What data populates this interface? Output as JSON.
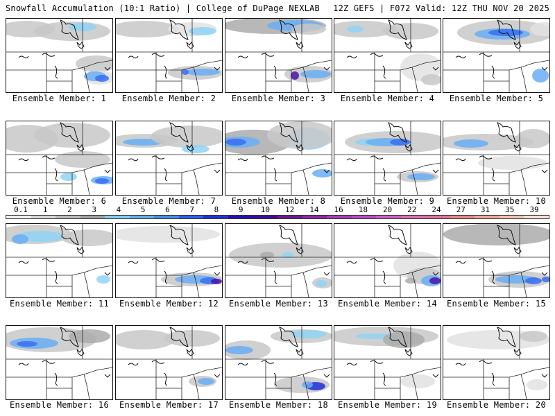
{
  "header": {
    "title_left": "Snowfall Accumulation (10:1 Ratio) | College of DuPage NEXLAB",
    "title_right": "12Z GEFS | F072 Valid: 12Z THU NOV 20 2025"
  },
  "colors": {
    "panel_border": "#111111",
    "state_lines": "#222222",
    "background": "#ffffff"
  },
  "scale": {
    "labels": [
      "0.1",
      "1",
      "2",
      "3",
      "4",
      "5",
      "6",
      "7",
      "8",
      "9",
      "10",
      "12",
      "14",
      "16",
      "18",
      "20",
      "22",
      "24",
      "27",
      "31",
      "35",
      "39"
    ],
    "colors": [
      "#f2f2f2",
      "#d8d8d8",
      "#bdbdbd",
      "#a2a2a2",
      "#87cfee",
      "#65b1f2",
      "#4a8ef0",
      "#3060ea",
      "#1f34d8",
      "#2710b4",
      "#400aa0",
      "#6a1b9a",
      "#8a2aa8",
      "#a740b8",
      "#c04cc4",
      "#d45ec8",
      "#e070b8",
      "#e6709e",
      "#e88a8a",
      "#eeaa9a",
      "#f4c6b4",
      "#fae4d8"
    ]
  },
  "members": [
    {
      "label": "Ensemble Member: 1"
    },
    {
      "label": "Ensemble Member: 2"
    },
    {
      "label": "Ensemble Member: 3"
    },
    {
      "label": "Ensemble Member: 4"
    },
    {
      "label": "Ensemble Member: 5"
    },
    {
      "label": "Ensemble Member: 6"
    },
    {
      "label": "Ensemble Member: 7"
    },
    {
      "label": "Ensemble Member: 8"
    },
    {
      "label": "Ensemble Member: 9"
    },
    {
      "label": "Ensemble Member: 10"
    },
    {
      "label": "Ensemble Member: 11"
    },
    {
      "label": "Ensemble Member: 12"
    },
    {
      "label": "Ensemble Member: 13"
    },
    {
      "label": "Ensemble Member: 14"
    },
    {
      "label": "Ensemble Member: 15"
    },
    {
      "label": "Ensemble Member: 16"
    },
    {
      "label": "Ensemble Member: 17"
    },
    {
      "label": "Ensemble Member: 18"
    },
    {
      "label": "Ensemble Member: 19"
    },
    {
      "label": "Ensemble Member: 20"
    }
  ]
}
